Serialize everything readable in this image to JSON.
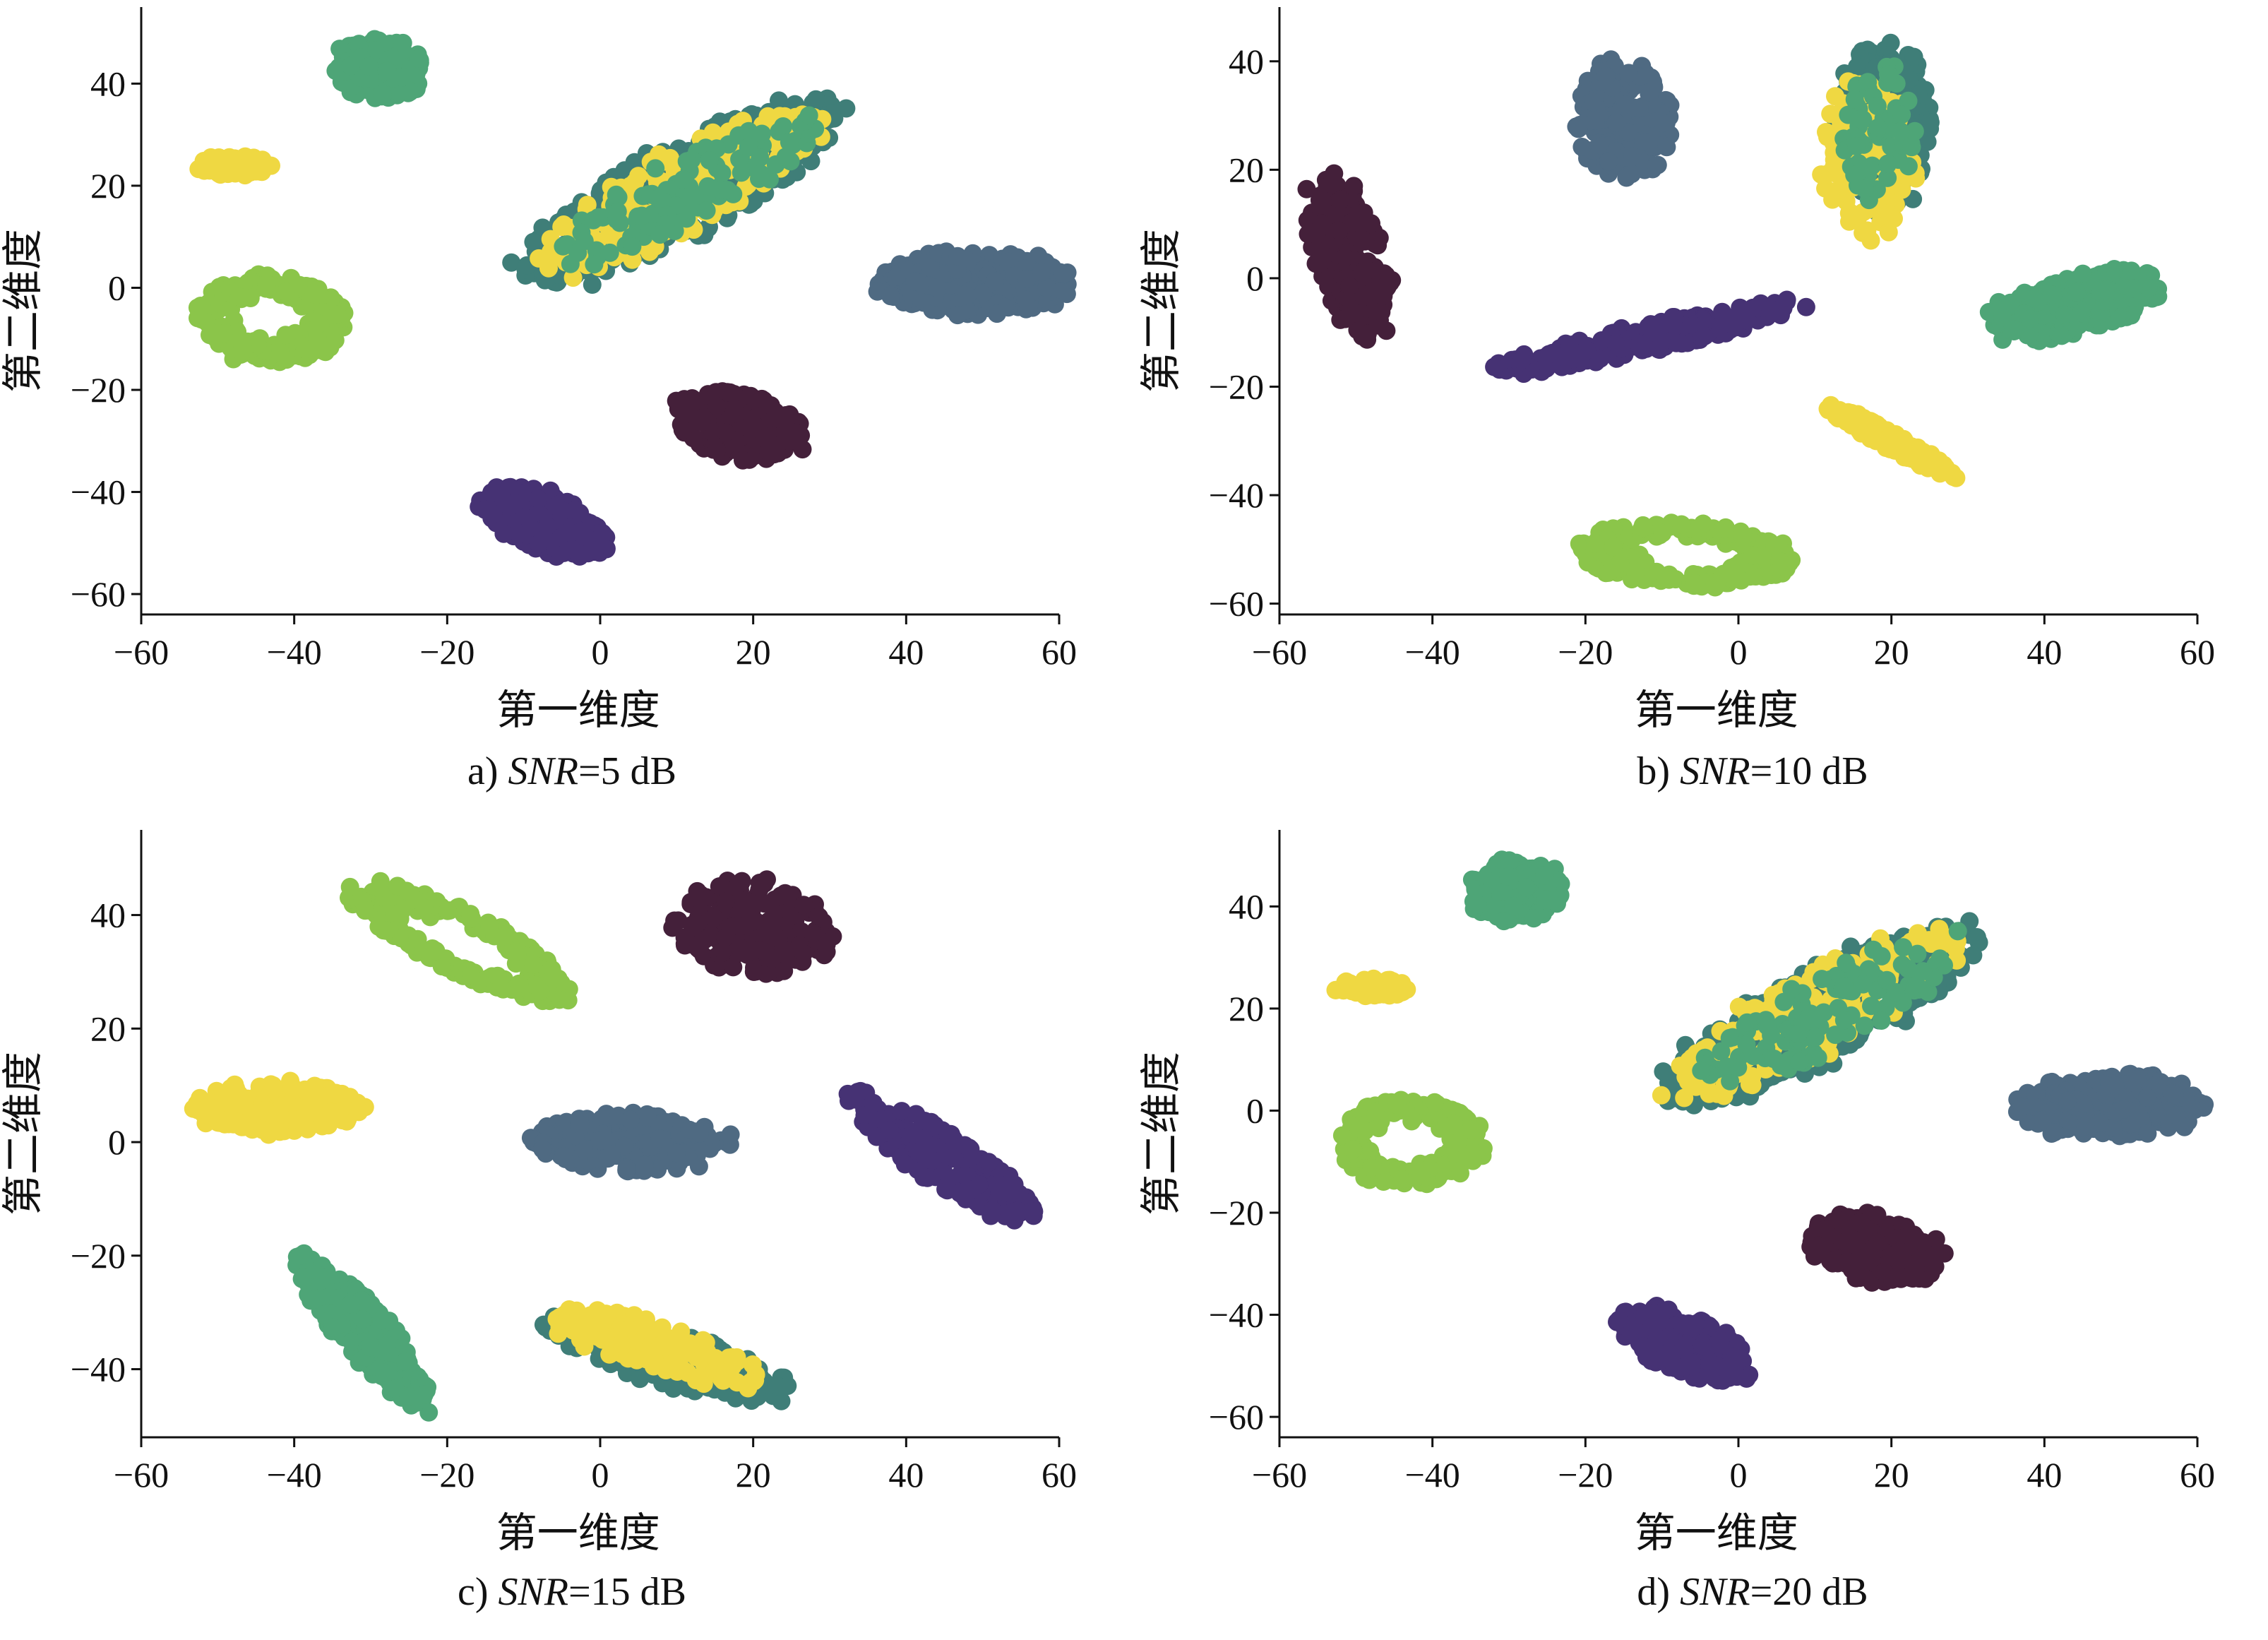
{
  "palette": {
    "c0": "#44203a",
    "c1": "#463274",
    "c2": "#4f6a82",
    "c3": "#3f7e78",
    "c4": "#4ea577",
    "c5": "#8bc54a",
    "c6": "#efd842"
  },
  "chart_data": [
    {
      "id": "a",
      "type": "scatter",
      "caption": {
        "prefix": "a) ",
        "snr": "SNR",
        "suffix": "=5 dB"
      },
      "xlabel": "第一维度",
      "ylabel": "第二维度",
      "xlim": [
        -60,
        60
      ],
      "ylim": [
        -64,
        55
      ],
      "xticks": [
        -60,
        -40,
        -20,
        0,
        20,
        40,
        60
      ],
      "yticks": [
        -60,
        -40,
        -20,
        0,
        20,
        40
      ],
      "clusters": [
        {
          "color": "c4",
          "cx": -29,
          "cy": 43,
          "rx": 6,
          "ry": 6,
          "rot": 0,
          "n": 150,
          "ring": false
        },
        {
          "color": "c6",
          "cx": -48,
          "cy": 24,
          "rx": 5,
          "ry": 1.8,
          "rot": 0,
          "n": 70,
          "ring": false
        },
        {
          "color": "c5",
          "cx": -43,
          "cy": -6,
          "rx": 9,
          "ry": 8,
          "rot": 0,
          "n": 260,
          "ring": true
        },
        {
          "color": "c2",
          "cx": 49,
          "cy": 1,
          "rx": 12,
          "ry": 6,
          "rot": 0,
          "n": 280,
          "ring": false
        },
        {
          "color": "c0",
          "cx": 18,
          "cy": -27,
          "rx": 9,
          "ry": 6,
          "rot": -25,
          "n": 230,
          "ring": false
        },
        {
          "color": "c1",
          "cx": -7,
          "cy": -46,
          "rx": 10,
          "ry": 5,
          "rot": -38,
          "n": 230,
          "ring": false
        },
        {
          "color": "c3",
          "cx": 11,
          "cy": 19,
          "rx": 26,
          "ry": 8,
          "rot": 40,
          "n": 420,
          "ring": false
        },
        {
          "color": "c6",
          "cx": 10,
          "cy": 19,
          "rx": 24,
          "ry": 7,
          "rot": 40,
          "n": 200,
          "ring": false
        },
        {
          "color": "c4",
          "cx": 11,
          "cy": 19,
          "rx": 22,
          "ry": 6,
          "rot": 40,
          "n": 110,
          "ring": false
        }
      ]
    },
    {
      "id": "b",
      "type": "scatter",
      "caption": {
        "prefix": "b) ",
        "snr": "SNR",
        "suffix": "=10 dB"
      },
      "xlabel": "第一维度",
      "ylabel": "第二维度",
      "xlim": [
        -60,
        60
      ],
      "ylim": [
        -62,
        50
      ],
      "xticks": [
        -60,
        -40,
        -20,
        0,
        20,
        40,
        60
      ],
      "yticks": [
        -60,
        -40,
        -20,
        0,
        20,
        40
      ],
      "clusters": [
        {
          "color": "c2",
          "cx": -15,
          "cy": 29,
          "rx": 6,
          "ry": 11,
          "rot": 0,
          "n": 230,
          "ring": false
        },
        {
          "color": "c0",
          "cx": -51,
          "cy": 4,
          "rx": 4.5,
          "ry": 15,
          "rot": 12,
          "n": 200,
          "ring": false
        },
        {
          "color": "c1",
          "cx": -12,
          "cy": -11,
          "rx": 20,
          "ry": 2.5,
          "rot": 17,
          "n": 230,
          "ring": false
        },
        {
          "color": "c3",
          "cx": 19,
          "cy": 28,
          "rx": 6,
          "ry": 15,
          "rot": 0,
          "n": 260,
          "ring": false
        },
        {
          "color": "c6",
          "cx": 17,
          "cy": 22,
          "rx": 6,
          "ry": 14,
          "rot": 0,
          "n": 150,
          "ring": false
        },
        {
          "color": "c4",
          "cx": 18,
          "cy": 27,
          "rx": 5,
          "ry": 13,
          "rot": 0,
          "n": 60,
          "ring": false
        },
        {
          "color": "c4",
          "cx": 44,
          "cy": -5,
          "rx": 12,
          "ry": 5,
          "rot": 20,
          "n": 230,
          "ring": false
        },
        {
          "color": "c6",
          "cx": 20,
          "cy": -30,
          "rx": 11,
          "ry": 1.5,
          "rot": -38,
          "n": 120,
          "ring": false
        },
        {
          "color": "c5",
          "cx": -7,
          "cy": -51,
          "rx": 13,
          "ry": 5.5,
          "rot": -5,
          "n": 240,
          "ring": true
        }
      ]
    },
    {
      "id": "c",
      "type": "scatter",
      "caption": {
        "prefix": "c) ",
        "snr": "SNR",
        "suffix": "=15 dB"
      },
      "xlabel": "第一维度",
      "ylabel": "第二维度",
      "xlim": [
        -60,
        60
      ],
      "ylim": [
        -52,
        55
      ],
      "xticks": [
        -60,
        -40,
        -20,
        0,
        20,
        40,
        60
      ],
      "yticks": [
        -40,
        -20,
        0,
        20,
        40
      ],
      "clusters": [
        {
          "color": "c5",
          "cx": -18,
          "cy": 35,
          "rx": 16,
          "ry": 5,
          "rot": -35,
          "n": 230,
          "ring": true
        },
        {
          "color": "c0",
          "cx": 20,
          "cy": 38,
          "rx": 10,
          "ry": 8,
          "rot": -15,
          "n": 240,
          "ring": false
        },
        {
          "color": "c6",
          "cx": -42,
          "cy": 6,
          "rx": 11,
          "ry": 4.5,
          "rot": 0,
          "n": 230,
          "ring": false
        },
        {
          "color": "c2",
          "cx": 4,
          "cy": 0,
          "rx": 12,
          "ry": 5,
          "rot": 0,
          "n": 230,
          "ring": false
        },
        {
          "color": "c1",
          "cx": 45,
          "cy": -3,
          "rx": 16,
          "ry": 4,
          "rot": -42,
          "n": 240,
          "ring": false
        },
        {
          "color": "c4",
          "cx": -31,
          "cy": -33,
          "rx": 16,
          "ry": 3.5,
          "rot": -58,
          "n": 240,
          "ring": false
        },
        {
          "color": "c3",
          "cx": 9,
          "cy": -38,
          "rx": 16,
          "ry": 4.5,
          "rot": -22,
          "n": 260,
          "ring": false
        },
        {
          "color": "c6",
          "cx": 7,
          "cy": -36,
          "rx": 15,
          "ry": 4,
          "rot": -22,
          "n": 150,
          "ring": false
        }
      ]
    },
    {
      "id": "d",
      "type": "scatter",
      "caption": {
        "prefix": "d) ",
        "snr": "SNR",
        "suffix": "=20 dB"
      },
      "xlabel": "第一维度",
      "ylabel": "第二维度",
      "xlim": [
        -60,
        60
      ],
      "ylim": [
        -64,
        55
      ],
      "xticks": [
        -60,
        -40,
        -20,
        0,
        20,
        40,
        60
      ],
      "yticks": [
        -60,
        -40,
        -20,
        0,
        20,
        40
      ],
      "clusters": [
        {
          "color": "c4",
          "cx": -29,
          "cy": 43,
          "rx": 6,
          "ry": 6,
          "rot": 0,
          "n": 150,
          "ring": false
        },
        {
          "color": "c6",
          "cx": -48,
          "cy": 24,
          "rx": 5,
          "ry": 1.8,
          "rot": 0,
          "n": 70,
          "ring": false
        },
        {
          "color": "c5",
          "cx": -43,
          "cy": -6,
          "rx": 9,
          "ry": 8,
          "rot": 0,
          "n": 260,
          "ring": true
        },
        {
          "color": "c2",
          "cx": 49,
          "cy": 1,
          "rx": 12,
          "ry": 6,
          "rot": 0,
          "n": 280,
          "ring": false
        },
        {
          "color": "c0",
          "cx": 18,
          "cy": -27,
          "rx": 9,
          "ry": 6,
          "rot": -25,
          "n": 230,
          "ring": false
        },
        {
          "color": "c1",
          "cx": -7,
          "cy": -46,
          "rx": 10,
          "ry": 5,
          "rot": -38,
          "n": 230,
          "ring": false
        },
        {
          "color": "c3",
          "cx": 11,
          "cy": 19,
          "rx": 26,
          "ry": 8,
          "rot": 40,
          "n": 420,
          "ring": false
        },
        {
          "color": "c6",
          "cx": 10,
          "cy": 19,
          "rx": 24,
          "ry": 7,
          "rot": 40,
          "n": 200,
          "ring": false
        },
        {
          "color": "c4",
          "cx": 11,
          "cy": 19,
          "rx": 22,
          "ry": 6,
          "rot": 40,
          "n": 110,
          "ring": false
        }
      ]
    }
  ]
}
